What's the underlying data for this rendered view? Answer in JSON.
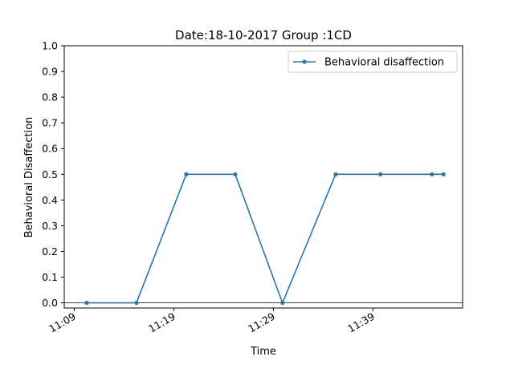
{
  "chart_data": {
    "type": "line",
    "title": "Date:18-10-2017 Group :1CD",
    "xlabel": "Time",
    "ylabel": "Behavioral Disaffection",
    "xlim": [
      "11:08",
      "11:48"
    ],
    "ylim": [
      -0.02,
      1.0
    ],
    "x_ticks": [
      "11:09",
      "11:19",
      "11:29",
      "11:39"
    ],
    "y_ticks": [
      "0.0",
      "0.1",
      "0.2",
      "0.3",
      "0.4",
      "0.5",
      "0.6",
      "0.7",
      "0.8",
      "0.9",
      "1.0"
    ],
    "grid": false,
    "legend_position": "upper-right",
    "series": [
      {
        "name": "Behavioral disaffection",
        "color": "#1f77b4",
        "x": [
          "11:10:15",
          "11:15:15",
          "11:20:15",
          "11:25:10",
          "11:29:55",
          "11:35:15",
          "11:39:45",
          "11:44:55",
          "11:46:05"
        ],
        "y": [
          0.0,
          0.0,
          0.5,
          0.5,
          0.0,
          0.5,
          0.5,
          0.5,
          0.5
        ]
      }
    ]
  }
}
